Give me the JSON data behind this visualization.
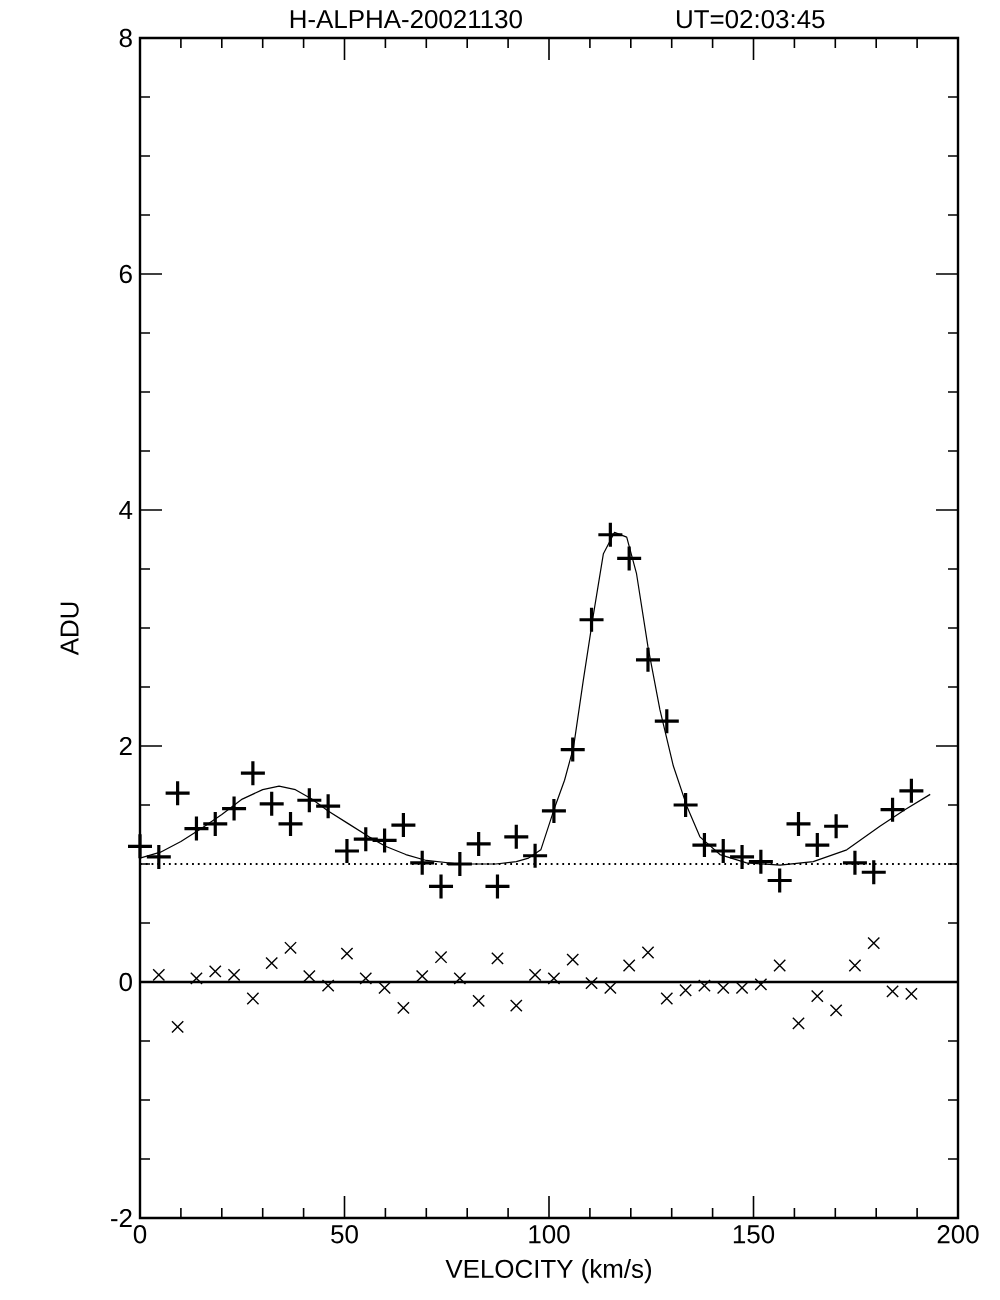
{
  "chart_data": {
    "type": "scatter",
    "title": "H-ALPHA-20021130",
    "subtitle": "UT=02:03:45",
    "xlabel": "VELOCITY (km/s)",
    "ylabel": "ADU",
    "xlim": [
      0,
      200
    ],
    "ylim": [
      -2,
      8
    ],
    "xticks": [
      0,
      {
        "value": 10,
        "label": null
      },
      {
        "value": 20,
        "label": null
      },
      {
        "value": 30,
        "label": null
      },
      {
        "value": 40,
        "label": null
      },
      50,
      {
        "value": 60,
        "label": null
      },
      {
        "value": 70,
        "label": null
      },
      {
        "value": 80,
        "label": null
      },
      {
        "value": 90,
        "label": null
      },
      100,
      {
        "value": 110,
        "label": null
      },
      {
        "value": 120,
        "label": null
      },
      {
        "value": 130,
        "label": null
      },
      {
        "value": 140,
        "label": null
      },
      150,
      {
        "value": 160,
        "label": null
      },
      {
        "value": 170,
        "label": null
      },
      {
        "value": 180,
        "label": null
      },
      {
        "value": 190,
        "label": null
      },
      200
    ],
    "yticks": [
      -2,
      {
        "value": -1.5,
        "label": null
      },
      {
        "value": -1,
        "label": null
      },
      {
        "value": -0.5,
        "label": null
      },
      0,
      {
        "value": 0.5,
        "label": null
      },
      {
        "value": 1,
        "label": null
      },
      {
        "value": 1.5,
        "label": null
      },
      2,
      {
        "value": 2.5,
        "label": null
      },
      {
        "value": 3,
        "label": null
      },
      {
        "value": 3.5,
        "label": null
      },
      4,
      {
        "value": 4.5,
        "label": null
      },
      {
        "value": 5,
        "label": null
      },
      {
        "value": 5.5,
        "label": null
      },
      6,
      {
        "value": 6.5,
        "label": null
      },
      {
        "value": 7,
        "label": null
      },
      {
        "value": 7.5,
        "label": null
      },
      8
    ],
    "series": [
      {
        "marker": "cross",
        "color": "#000000",
        "x": [
          0,
          4.6,
          9.2,
          13.8,
          18.4,
          23.0,
          27.6,
          32.2,
          36.8,
          41.4,
          46.0,
          50.6,
          55.2,
          59.8,
          64.4,
          69.0,
          73.6,
          78.2,
          82.8,
          87.4,
          92.0,
          96.6,
          101.2,
          105.8,
          110.4,
          115.0,
          119.6,
          124.2,
          128.8,
          133.4,
          138.0,
          142.6,
          147.2,
          151.8,
          156.4,
          161.0,
          165.6,
          170.2,
          174.8,
          179.4,
          184.0,
          188.6
        ],
        "values": [
          1.15,
          1.06,
          1.6,
          1.3,
          1.34,
          1.47,
          1.77,
          1.51,
          1.34,
          1.54,
          1.49,
          1.11,
          1.21,
          1.2,
          1.33,
          1.01,
          0.81,
          1.0,
          1.17,
          0.81,
          1.23,
          1.07,
          1.45,
          1.97,
          3.07,
          3.79,
          3.59,
          2.73,
          2.21,
          1.5,
          1.16,
          1.11,
          1.06,
          1.02,
          0.86,
          1.34,
          1.16,
          1.32,
          1.01,
          0.93,
          1.46,
          1.62
        ]
      },
      {
        "type": "line",
        "line_style": "solid",
        "color": "#000000",
        "x": [
          0,
          5,
          10,
          15,
          20,
          25,
          30,
          34,
          38,
          42,
          46,
          51,
          56,
          60,
          65,
          70,
          78,
          87,
          92,
          95,
          98,
          101.5,
          103.8,
          106,
          108.4,
          110.8,
          113.3,
          116,
          119,
          121.4,
          124.2,
          127.1,
          130.4,
          133.7,
          136.9,
          141.8,
          148.3,
          156.5,
          164.6,
          172.8,
          180.9,
          187,
          193.2
        ],
        "values": [
          1.05,
          1.1,
          1.19,
          1.3,
          1.42,
          1.55,
          1.63,
          1.66,
          1.63,
          1.55,
          1.45,
          1.34,
          1.23,
          1.15,
          1.08,
          1.03,
          1.0,
          1.0,
          1.02,
          1.05,
          1.12,
          1.49,
          1.71,
          1.99,
          2.56,
          3.1,
          3.63,
          3.81,
          3.77,
          3.46,
          2.84,
          2.31,
          1.83,
          1.49,
          1.23,
          1.08,
          1.01,
          0.99,
          1.02,
          1.12,
          1.32,
          1.46,
          1.59
        ]
      },
      {
        "marker": "x",
        "color": "#000000",
        "x": [
          4.6,
          9.2,
          13.8,
          18.4,
          23.0,
          27.6,
          32.2,
          36.8,
          41.4,
          46.0,
          50.6,
          55.2,
          59.8,
          64.4,
          69.0,
          73.6,
          78.2,
          82.8,
          87.4,
          92.0,
          96.6,
          101.2,
          105.8,
          110.4,
          115.0,
          119.6,
          124.2,
          128.8,
          133.4,
          138.0,
          142.6,
          147.2,
          151.8,
          156.4,
          161.0,
          165.6,
          170.2,
          174.8,
          179.4,
          184.0,
          188.6
        ],
        "values": [
          0.06,
          -0.38,
          0.03,
          0.09,
          0.06,
          -0.14,
          0.16,
          0.29,
          0.05,
          -0.03,
          0.24,
          0.03,
          -0.05,
          -0.22,
          0.05,
          0.21,
          0.03,
          -0.16,
          0.2,
          -0.2,
          0.06,
          0.03,
          0.19,
          -0.01,
          -0.05,
          0.14,
          0.25,
          -0.14,
          -0.07,
          -0.03,
          -0.05,
          -0.05,
          -0.02,
          0.14,
          -0.35,
          -0.12,
          -0.24,
          0.14,
          0.33,
          -0.08,
          -0.1
        ]
      }
    ],
    "ref_lines": [
      {
        "axis": "y",
        "value": 1,
        "line_style": "dotted",
        "color": "#000000"
      },
      {
        "axis": "y",
        "value": 0,
        "line_style": "solid",
        "color": "#000000"
      }
    ]
  }
}
